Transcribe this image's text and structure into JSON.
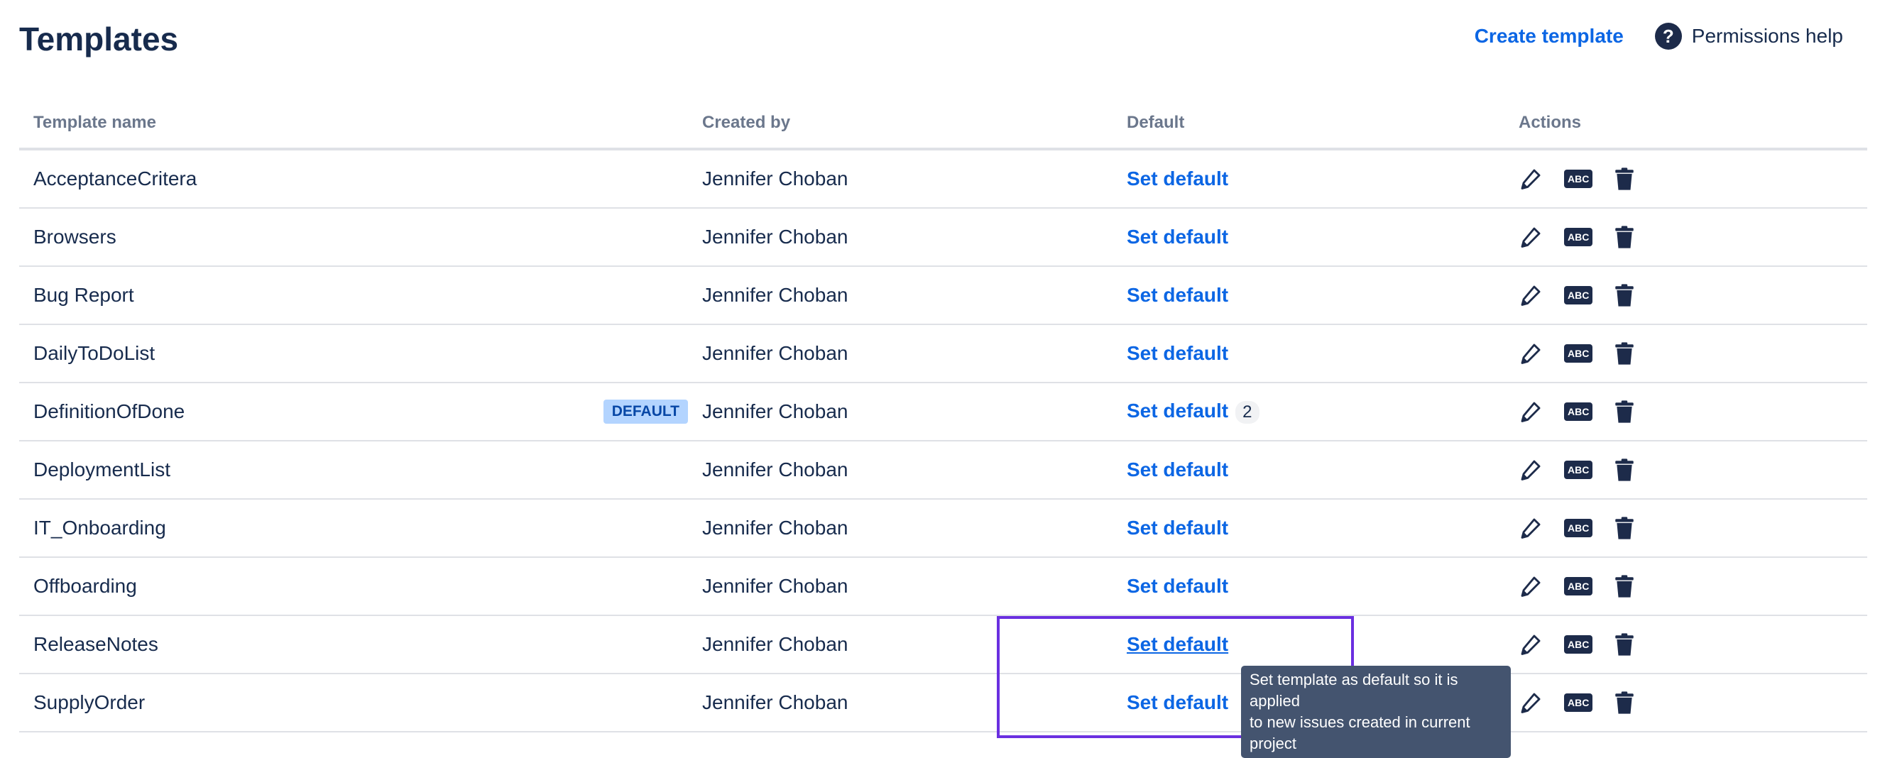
{
  "page": {
    "title": "Templates"
  },
  "header": {
    "create_label": "Create template",
    "help_label": "Permissions help",
    "help_icon_glyph": "?"
  },
  "table": {
    "columns": [
      "Template name",
      "Created by",
      "Default",
      "Actions"
    ],
    "rows": [
      {
        "name": "AcceptanceCritera",
        "created_by": "Jennifer Choban",
        "action": "Set default"
      },
      {
        "name": "Browsers",
        "created_by": "Jennifer Choban",
        "action": "Set default"
      },
      {
        "name": "Bug Report",
        "created_by": "Jennifer Choban",
        "action": "Set default"
      },
      {
        "name": "DailyToDoList",
        "created_by": "Jennifer Choban",
        "action": "Set default"
      },
      {
        "name": "DefinitionOfDone",
        "badge": "DEFAULT",
        "created_by": "Jennifer Choban",
        "action": "Set default",
        "count": "2"
      },
      {
        "name": "DeploymentList",
        "created_by": "Jennifer Choban",
        "action": "Set default"
      },
      {
        "name": "IT_Onboarding",
        "created_by": "Jennifer Choban",
        "action": "Set default"
      },
      {
        "name": "Offboarding",
        "created_by": "Jennifer Choban",
        "action": "Set default"
      },
      {
        "name": "ReleaseNotes",
        "created_by": "Jennifer Choban",
        "action": "Set default",
        "hovered": true
      },
      {
        "name": "SupplyOrder",
        "created_by": "Jennifer Choban",
        "action": "Set default"
      }
    ],
    "action_icons": [
      "pencil-icon",
      "abc-icon",
      "trash-icon"
    ],
    "abc_label": "ABC"
  },
  "tooltip": {
    "line1": "Set template as default so it is applied",
    "line2": "to new issues created in current project"
  },
  "colors": {
    "link": "#0c66e4",
    "text": "#172b4d",
    "highlight": "#6a2fe0",
    "tooltip_bg": "#44546f",
    "badge_bg": "#b3d4ff"
  }
}
